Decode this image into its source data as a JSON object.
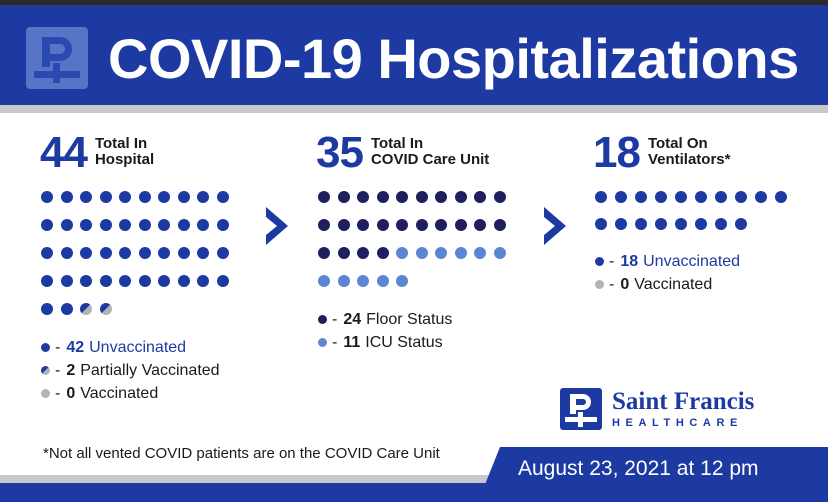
{
  "header": {
    "title": "COVID-19 Hospitalizations",
    "logo_icon": "saint-francis-cross-icon"
  },
  "colors": {
    "brand_blue": "#1d3aa3",
    "floor_navy": "#1f1f5e",
    "icu_blue": "#5c86d4",
    "vaccinated_grey": "#b3b3b3"
  },
  "hospital": {
    "total": "44",
    "label_line1": "Total In",
    "label_line2": "Hospital",
    "legend": [
      {
        "dash": "-",
        "count": "42",
        "text": "Unvaccinated"
      },
      {
        "dash": "-",
        "count": "2",
        "text": "Partially Vaccinated"
      },
      {
        "dash": "-",
        "count": "0",
        "text": "Vaccinated"
      }
    ]
  },
  "care_unit": {
    "total": "35",
    "label_line1": "Total In",
    "label_line2": "COVID Care Unit",
    "legend": [
      {
        "dash": "-",
        "count": "24",
        "text": "Floor Status"
      },
      {
        "dash": "-",
        "count": "11",
        "text": "ICU Status"
      }
    ]
  },
  "ventilators": {
    "total": "18",
    "label_line1": "Total On",
    "label_line2": "Ventilators*",
    "legend": [
      {
        "dash": "-",
        "count": "18",
        "text": "Unvaccinated"
      },
      {
        "dash": "-",
        "count": "0",
        "text": "Vaccinated"
      }
    ]
  },
  "brand": {
    "name": "Saint Francis",
    "sub": "HEALTHCARE"
  },
  "footnote": "*Not all vented COVID patients are on the COVID Care Unit",
  "date": "August 23, 2021 at 12 pm"
}
